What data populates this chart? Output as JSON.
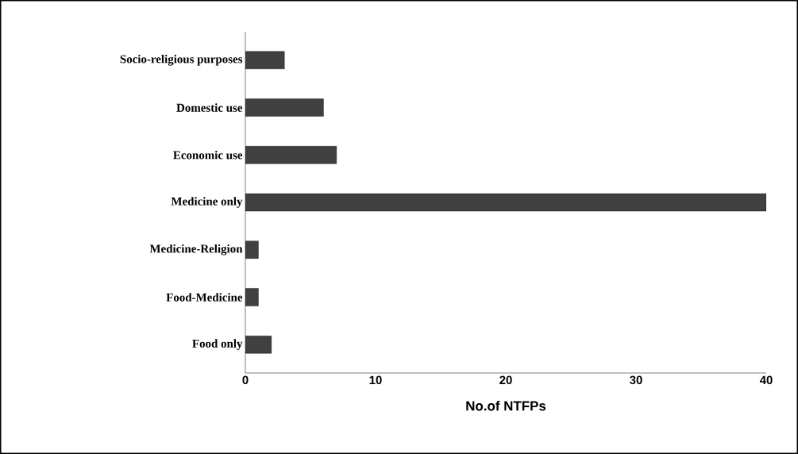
{
  "chart_data": {
    "type": "bar",
    "orientation": "horizontal",
    "xlabel": "No.of NTFPs",
    "categories": [
      "Socio-religious purposes",
      "Domestic use",
      "Economic use",
      "Medicine only",
      "Medicine-Religion",
      "Food-Medicine",
      "Food only"
    ],
    "values": [
      3,
      6,
      7,
      40,
      1,
      1,
      2
    ],
    "color": "#404040",
    "xlim": [
      0,
      40
    ],
    "xticks": [
      0,
      10,
      20,
      30,
      40
    ],
    "grid": false
  }
}
